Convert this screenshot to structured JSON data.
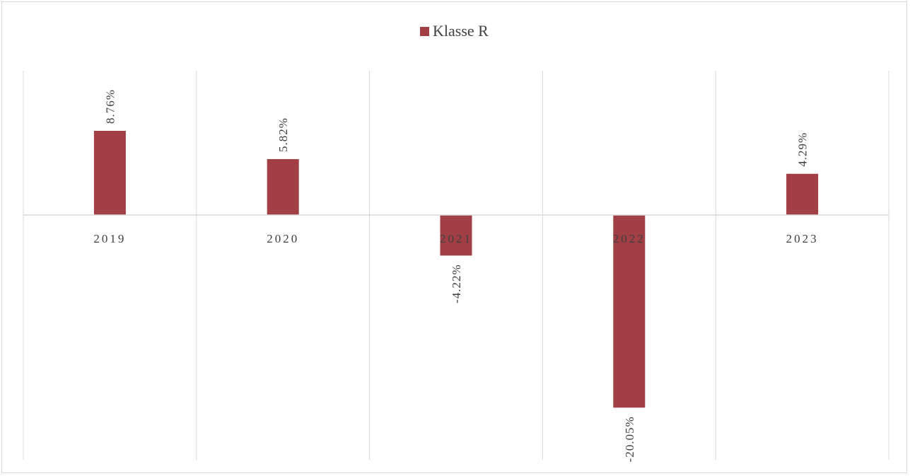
{
  "chart_data": {
    "type": "bar",
    "categories": [
      "2019",
      "2020",
      "2021",
      "2022",
      "2023"
    ],
    "series": [
      {
        "name": "Klasse R",
        "values": [
          8.76,
          5.82,
          -4.22,
          -20.05,
          4.29
        ],
        "labels": [
          "8.76%",
          "5.82%",
          "-4.22%",
          "-20.05%",
          "4.29%"
        ],
        "color": "#a13f45"
      }
    ],
    "title": "",
    "xlabel": "",
    "ylabel": "",
    "ylim": [
      -25,
      15
    ],
    "grid": "vertical",
    "legend_position": "top-center",
    "gridline_color": "#d9d9d9"
  }
}
